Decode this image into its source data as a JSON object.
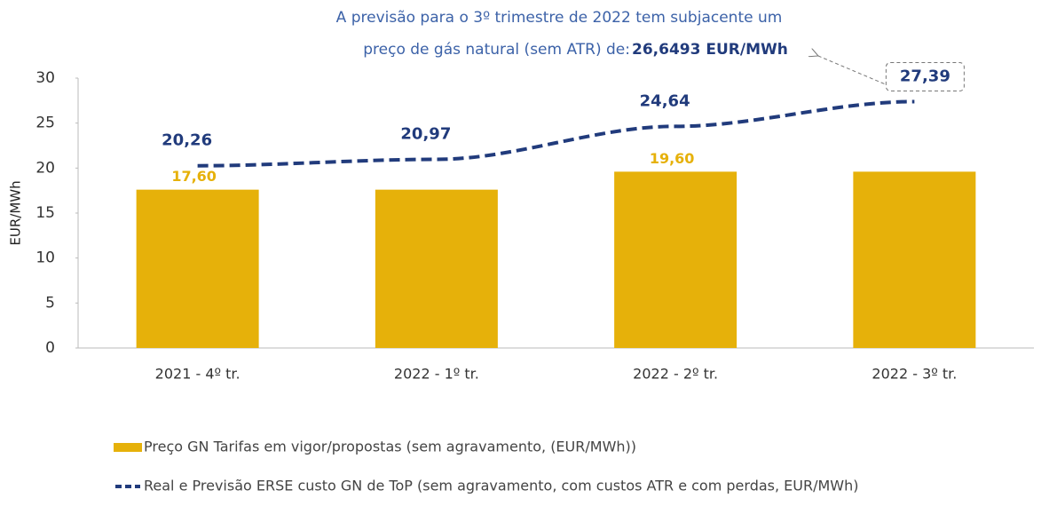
{
  "chart_data": {
    "type": "bar_line",
    "annotation": [
      "A previsão para o 3º trimestre de 2022 tem subjacente um",
      "preço de gás natural (sem ATR) de:",
      "26,6493 EUR/MWh"
    ],
    "y_label": "EUR/MWh",
    "categories": [
      "2021 - 4º tr.",
      "2022 - 1º tr.",
      "2022 - 2º tr.",
      "2022 - 3º tr."
    ],
    "series": [
      {
        "name": "Preço GN Tarifas em vigor/propostas (sem agravamento, (EUR/MWh))",
        "type": "bar",
        "color": "#e6b10a",
        "values": [
          17.6,
          17.6,
          19.6,
          19.6
        ],
        "value_labels": [
          "17,60",
          null,
          "19,60",
          null
        ]
      },
      {
        "name": "Real e Previsão ERSE custo GN de ToP (sem agravamento, com custos ATR e com perdas, EUR/MWh)",
        "type": "line",
        "color": "#213b7c",
        "values": [
          20.26,
          20.97,
          24.64,
          27.39
        ],
        "value_labels": [
          "20,26",
          "20,97",
          "24,64",
          "27,39"
        ]
      }
    ],
    "ylim": [
      0,
      30
    ],
    "yticks": [
      0,
      5,
      10,
      15,
      20,
      25,
      30
    ]
  }
}
